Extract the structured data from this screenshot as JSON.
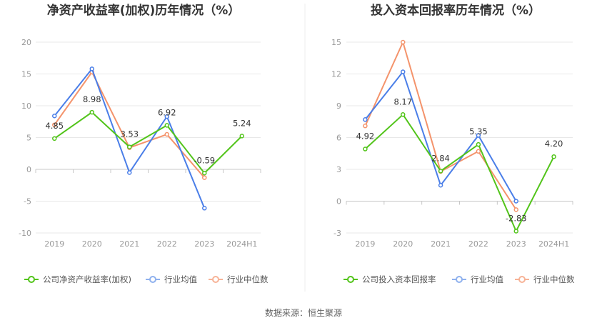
{
  "source_text": "数据来源：恒生聚源",
  "chart_data": [
    {
      "type": "line",
      "title": "净资产收益率(加权)历年情况（%）",
      "categories": [
        "2019",
        "2020",
        "2021",
        "2022",
        "2023",
        "2024H1"
      ],
      "ylim": [
        -10,
        20
      ],
      "yticks": [
        -10,
        -5,
        0,
        5,
        10,
        15,
        20
      ],
      "grid": true,
      "legend_position": "bottom",
      "series": [
        {
          "name": "公司净资产收益率(加权)",
          "color": "#52c41a",
          "values": [
            4.85,
            8.98,
            3.53,
            6.92,
            -0.59,
            5.24
          ],
          "labeled": true
        },
        {
          "name": "行业均值",
          "color": "#4a7ee8",
          "values": [
            8.4,
            15.8,
            -0.5,
            8.3,
            -6.1,
            null
          ],
          "labeled": false
        },
        {
          "name": "行业中位数",
          "color": "#f4936b",
          "values": [
            7.0,
            15.3,
            3.4,
            5.5,
            -1.3,
            null
          ],
          "labeled": false
        }
      ],
      "data_labels": [
        "4.85",
        "8.98",
        "3.53",
        "6.92",
        "-0.59",
        "5.24"
      ]
    },
    {
      "type": "line",
      "title": "投入资本回报率历年情况（%）",
      "categories": [
        "2019",
        "2020",
        "2021",
        "2022",
        "2023",
        "2024H1"
      ],
      "ylim": [
        -3,
        15
      ],
      "yticks": [
        -3,
        0,
        3,
        6,
        9,
        12,
        15
      ],
      "grid": true,
      "legend_position": "bottom",
      "series": [
        {
          "name": "公司投入资本回报率",
          "color": "#52c41a",
          "values": [
            4.92,
            8.17,
            2.84,
            5.35,
            -2.83,
            4.2
          ],
          "labeled": true
        },
        {
          "name": "行业均值",
          "color": "#4a7ee8",
          "values": [
            7.7,
            12.2,
            1.5,
            6.2,
            0.0,
            null
          ],
          "labeled": false
        },
        {
          "name": "行业中位数",
          "color": "#f4936b",
          "values": [
            7.1,
            15.0,
            2.8,
            4.7,
            -0.8,
            null
          ],
          "labeled": false
        }
      ],
      "data_labels": [
        "4.92",
        "8.17",
        "2.84",
        "5.35",
        "-2.83",
        "4.20"
      ]
    }
  ]
}
